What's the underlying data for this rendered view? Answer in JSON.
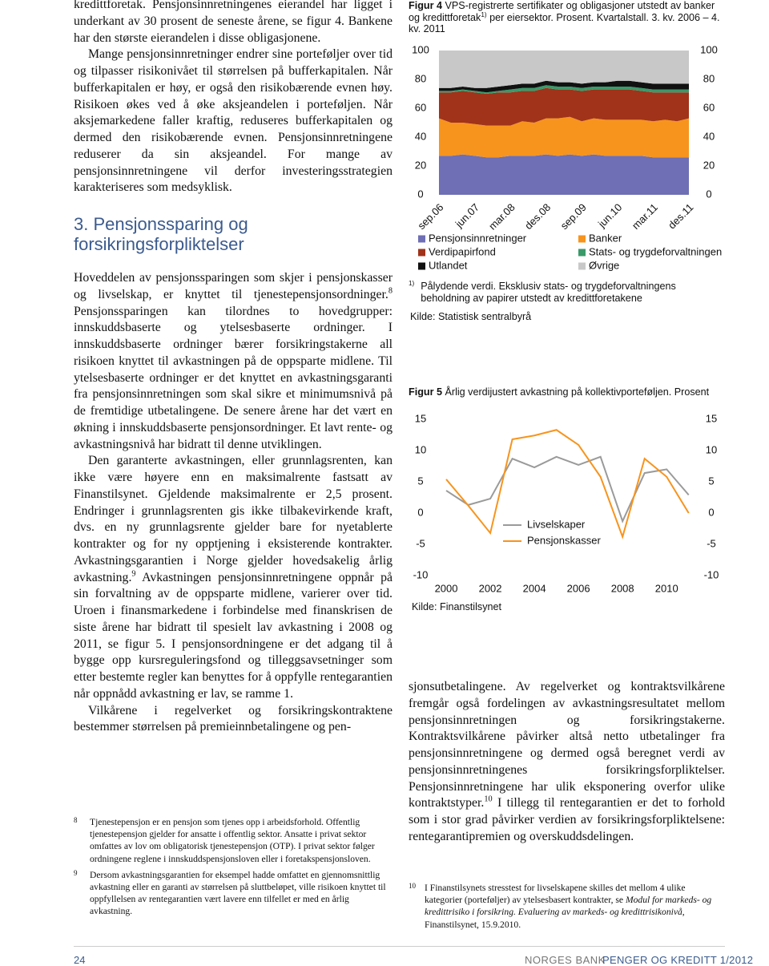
{
  "document": {
    "left_column": {
      "paragraphs_top": [
        [
          "kredittforetak. Pensjonsinnretningenes eierandel har ligget i underkant av 30 prosent de seneste årene, se figur 4. Bankene har den største eierandelen i disse obligasjonene."
        ],
        [
          "Mange pensjonsinnretninger endrer sine porteføljer over tid og tilpasser risikonivået til størrelsen på bufferkapitalen. Når bufferkapitalen er høy, er også den risikobærende evnen høy. Risikoen økes ved å øke aksjeandelen i porteføljen. Når aksjemarkedene faller kraftig, reduseres bufferkapitalen og dermed den risikobærende evnen. Pensjonsinnretningene reduserer da sin aksjeandel. For mange av pensjonsinnretningene vil derfor investeringsstrategien karakteriseres som medsyklisk."
        ]
      ],
      "heading": "3. Pensjonssparing og forsikringsforpliktelser",
      "paragraphs": [
        [
          "Hoveddelen av pensjonssparingen som skjer i pensjonskasser og livselskap, er knyttet til tjenestepensjonsordninger.",
          {
            "sup": "8"
          },
          " Pensjonssparingen kan tilordnes to hovedgrupper: innskuddsbaserte og ytelsesbaserte ordninger. I innskuddsbaserte ordninger bærer forsikringstakerne all risikoen knyttet til avkastningen på de oppsparte midlene. Til ytelsesbaserte ordninger er det knyttet en avkastningsgaranti fra pensjonsinnretningen som skal sikre et minimumsnivå på de fremtidige utbetalingene. De senere årene har det vært en økning i innskuddsbaserte pensjonsordninger. Et lavt rente- og avkastningsnivå har bidratt til denne utviklingen."
        ],
        [
          "Den garanterte avkastningen, eller grunnlagsrenten, kan ikke være høyere enn en maksimalrente fastsatt av Finanstilsynet. Gjeldende maksimalrente er 2,5 prosent. Endringer i grunnlagsrenten gis ikke tilbakevirkende kraft, dvs. en ny grunnlagsrente gjelder bare for nyetablerte kontrakter og for ny opptjening i eksisterende kontrakter. Avkastningsgarantien i Norge gjelder hovedsakelig årlig avkastning.",
          {
            "sup": "9"
          },
          " Avkastningen pensjonsinnretningene oppnår på sin forvaltning av de oppsparte midlene, varierer over tid. Uroen i finansmarkedene i forbindelse med finanskrisen de siste årene har bidratt til spesielt lav avkastning i 2008 og 2011, se figur 5. I pensjonsordningene er det adgang til å bygge opp kursreguleringsfond og tilleggsavsetninger som etter bestemte regler kan benyttes for å oppfylle rentegarantien når oppnådd avkastning er lav, se ramme 1."
        ],
        [
          "Vilkårene i regelverket og forsikringskontraktene bestemmer størrelsen på premieinnbetalingene og pen-"
        ]
      ],
      "footnotes": [
        {
          "number": "8",
          "text": [
            "Tjenestepensjon er en pensjon som tjenes opp i arbeidsforhold. Offentlig tjenestepensjon gjelder for ansatte i offentlig sektor. Ansatte i privat sektor omfattes av lov om obligatorisk tjenestepensjon (OTP). I privat sektor følger ordningene reglene i innskuddspensjonsloven eller i foretakspensjonsloven."
          ]
        },
        {
          "number": "9",
          "text": [
            "Dersom avkastningsgarantien for eksempel hadde omfattet en gjennomsnittlig avkastning eller en garanti av størrelsen på sluttbeløpet, ville risikoen knyttet til oppfyllelsen av rentegarantien vært lavere enn tilfellet er med en årlig avkastning."
          ]
        }
      ]
    },
    "right_column": {
      "paragraphs": [
        [
          "sjonsutbetalingene. Av regelverket og kontraktsvilkårene fremgår også fordelingen av avkastningsresultatet mellom pensjonsinnretningen og forsikringstakerne. Kontraktsvilkårene påvirker altså netto utbetalinger fra pensjonsinnretningene og dermed også beregnet verdi av pensjonsinnretningenes forsikringsforpliktelser. Pensjonsinnretningene har ulik eksponering overfor ulike kontraktstyper.",
          {
            "sup": "10"
          },
          " I tillegg til rentegarantien er det to forhold som i stor grad påvirker verdien av forsikringsforpliktelsene: rentegarantipremien og overskuddsdelingen."
        ]
      ],
      "footnotes": [
        {
          "number": "10",
          "text": [
            "I Finanstilsynets stresstest for livselskapene skilles det mellom 4 ulike kategorier (porteføljer) av ytelsesbasert kontrakter, se ",
            {
              "i": "Modul for markeds- og kredittrisiko i forsikring. Evaluering av markeds- og kredittrisikonivå"
            },
            ", Finanstilsynet, 15.9.2010."
          ]
        }
      ]
    },
    "footer": {
      "page": "24",
      "publisher": "NORGES BANK",
      "publication": "PENGER OG KREDITT 1/2012"
    }
  },
  "chart_data": [
    {
      "type": "area",
      "stacked": true,
      "label": "Figur 4",
      "title": [
        "VPS-registrerte sertifikater og obligasjoner utstedt av banker og kredittforetak",
        {
          "sup": "1)"
        },
        " per eiersektor. Prosent. Kvartalstall. 3. kv. 2006 – 4. kv. 2011"
      ],
      "note": {
        "marker": "1)",
        "text": "Pålydende verdi. Eksklusiv stats- og trygdeforvaltningens beholdning av papirer utstedt av kredittforetakene"
      },
      "source": "Kilde: Statistisk sentralbyrå",
      "categories": [
        "sep.06",
        null,
        null,
        "jun.07",
        null,
        null,
        "mar.08",
        null,
        null,
        "des.08",
        null,
        null,
        "sep.09",
        null,
        null,
        "jun.10",
        null,
        null,
        "mar.11",
        null,
        null,
        "des.11"
      ],
      "series": [
        {
          "name": "Pensjonsinnretninger",
          "color": "#6e6fb4",
          "values": [
            27,
            27,
            28,
            27,
            26,
            26,
            27,
            27,
            27,
            28,
            27,
            28,
            27,
            28,
            27,
            27,
            27,
            27,
            26,
            26,
            26,
            26
          ]
        },
        {
          "name": "Banker",
          "color": "#f7941d",
          "values": [
            26,
            23,
            22,
            22,
            22,
            22,
            21,
            24,
            23,
            25,
            26,
            26,
            24,
            25,
            25,
            25,
            25,
            25,
            25,
            26,
            25,
            27
          ]
        },
        {
          "name": "Verdipapirfond",
          "color": "#a0331a",
          "values": [
            18,
            21,
            22,
            22,
            22,
            23,
            23,
            21,
            22,
            21,
            20,
            19,
            21,
            20,
            21,
            21,
            21,
            20,
            20,
            19,
            20,
            18
          ]
        },
        {
          "name": "Stats- og trygdeforvaltningen",
          "color": "#3a9a6a",
          "values": [
            1,
            1,
            1,
            1,
            1,
            1,
            2,
            2,
            2,
            2,
            2,
            2,
            2,
            2,
            2,
            2,
            2,
            2,
            2,
            2,
            2,
            2
          ]
        },
        {
          "name": "Utlandet",
          "color": "#111111",
          "values": [
            2,
            2,
            2,
            2,
            3,
            3,
            3,
            3,
            3,
            3,
            3,
            3,
            3,
            3,
            3,
            4,
            4,
            4,
            4,
            4,
            4,
            4
          ]
        },
        {
          "name": "Øvrige",
          "color": "#c8c8c8",
          "values": [
            26,
            26,
            25,
            26,
            26,
            25,
            24,
            23,
            23,
            21,
            22,
            22,
            23,
            22,
            22,
            21,
            21,
            22,
            23,
            23,
            23,
            23
          ]
        }
      ],
      "ylim": [
        0,
        100
      ],
      "yticks": [
        0,
        20,
        40,
        60,
        80,
        100
      ],
      "y2lim": [
        0,
        100
      ],
      "y2ticks": [
        0,
        20,
        40,
        60,
        80,
        100
      ]
    },
    {
      "type": "line",
      "label": "Figur 5",
      "title": [
        "Årlig verdijustert avkastning på kollektivporteføljen. Prosent"
      ],
      "source": "Kilde: Finanstilsynet",
      "x": [
        2000,
        2001,
        2002,
        2003,
        2004,
        2005,
        2006,
        2007,
        2008,
        2009,
        2010,
        2011
      ],
      "series": [
        {
          "name": "Livselskaper",
          "color": "#9a9a9a",
          "values": [
            3.6,
            1.3,
            2.3,
            8.7,
            7.3,
            9.0,
            7.7,
            9.0,
            -1.3,
            6.4,
            7.0,
            2.9
          ]
        },
        {
          "name": "Pensjonskasser",
          "color": "#f7941d",
          "values": [
            5.4,
            1.2,
            -3.2,
            11.8,
            12.4,
            13.3,
            10.9,
            5.8,
            -3.8,
            8.7,
            5.8,
            0
          ]
        }
      ],
      "xlim": [
        1998.4,
        2011.3
      ],
      "xticks": [
        2000,
        2002,
        2004,
        2006,
        2008,
        2010
      ],
      "ylim": [
        -10,
        15
      ],
      "yticks": [
        15,
        10,
        5,
        0,
        -5,
        -10
      ],
      "y2lim": [
        -10,
        15
      ],
      "y2ticks": [
        15,
        10,
        5,
        0,
        -5,
        -10
      ]
    }
  ]
}
